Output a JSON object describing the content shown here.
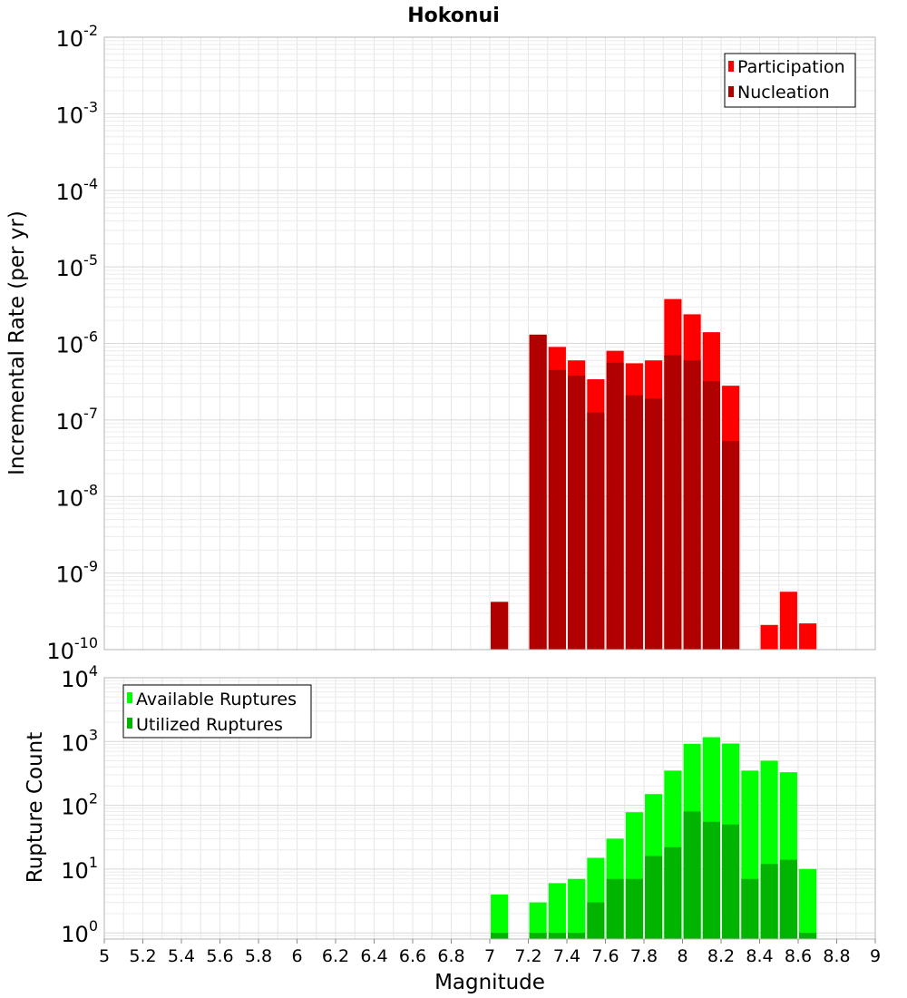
{
  "colors": {
    "participation": "#ff0000",
    "nucleation": "#b00000",
    "available": "#00ff00",
    "utilized": "#00b400",
    "grid": "#e6e6e6",
    "axis_frame": "#b4b4b4"
  },
  "chart_data": [
    {
      "type": "bar",
      "title": "Hokonui",
      "xlabel": "",
      "ylabel": "Incremental Rate (per yr)",
      "yscale": "log",
      "ylim": [
        1e-10,
        0.01
      ],
      "xlim": [
        5,
        9
      ],
      "y_tick_exponents": [
        "-10",
        "-9",
        "-8",
        "-7",
        "-6",
        "-5",
        "-4",
        "-3",
        "-2"
      ],
      "legend_position": "top-right",
      "grid": true,
      "series": [
        {
          "name": "Participation",
          "x": [
            7.05,
            7.25,
            7.35,
            7.45,
            7.55,
            7.65,
            7.75,
            7.85,
            7.95,
            8.05,
            8.15,
            8.25,
            8.45,
            8.55,
            8.65
          ],
          "values": [
            4.2e-10,
            1.3e-06,
            9e-07,
            6e-07,
            3.4e-07,
            8e-07,
            5.5e-07,
            6e-07,
            3.8e-06,
            2.4e-06,
            1.4e-06,
            2.8e-07,
            2.1e-10,
            5.7e-10,
            2.2e-10
          ]
        },
        {
          "name": "Nucleation",
          "x": [
            7.05,
            7.25,
            7.35,
            7.45,
            7.55,
            7.65,
            7.75,
            7.85,
            7.95,
            8.05,
            8.15,
            8.25
          ],
          "values": [
            4.2e-10,
            1.3e-06,
            4.5e-07,
            3.8e-07,
            1.25e-07,
            5.6e-07,
            2.1e-07,
            1.9e-07,
            7e-07,
            6e-07,
            3.2e-07,
            5.3e-08
          ]
        }
      ]
    },
    {
      "type": "bar",
      "title": "",
      "xlabel": "Magnitude",
      "ylabel": "Rupture Count",
      "yscale": "log",
      "ylim": [
        0.8,
        10000
      ],
      "xlim": [
        5,
        9
      ],
      "x_ticks": [
        "5",
        "5.2",
        "5.4",
        "5.6",
        "5.8",
        "6",
        "6.2",
        "6.4",
        "6.6",
        "6.8",
        "7",
        "7.2",
        "7.4",
        "7.6",
        "7.8",
        "8",
        "8.2",
        "8.4",
        "8.6",
        "8.8",
        "9"
      ],
      "y_tick_exponents": [
        "0",
        "1",
        "2",
        "3",
        "4"
      ],
      "legend_position": "top-left",
      "grid": true,
      "series": [
        {
          "name": "Available Ruptures",
          "x": [
            7.05,
            7.25,
            7.35,
            7.45,
            7.55,
            7.65,
            7.75,
            7.85,
            7.95,
            8.05,
            8.15,
            8.25,
            8.35,
            8.45,
            8.55,
            8.65
          ],
          "values": [
            4,
            3,
            6,
            7,
            15,
            30,
            78,
            150,
            350,
            920,
            1170,
            930,
            350,
            500,
            330,
            10
          ]
        },
        {
          "name": "Utilized Ruptures",
          "x": [
            7.05,
            7.25,
            7.35,
            7.45,
            7.55,
            7.65,
            7.75,
            7.85,
            7.95,
            8.05,
            8.15,
            8.25,
            8.35,
            8.45,
            8.55,
            8.65
          ],
          "values": [
            1,
            1,
            1,
            1,
            3,
            7,
            7,
            16,
            22,
            80,
            55,
            50,
            7,
            12,
            14,
            1
          ]
        }
      ]
    }
  ]
}
